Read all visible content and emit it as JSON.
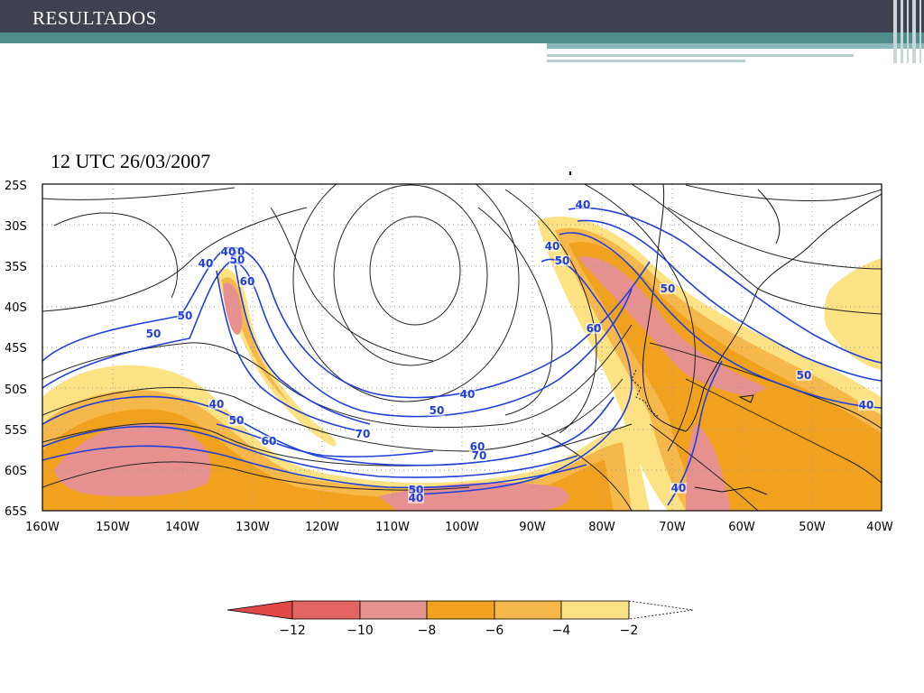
{
  "header": {
    "title": "RESULTADOS"
  },
  "map": {
    "timestamp": "12 UTC 26/03/2007",
    "lat_labels": [
      "25S",
      "30S",
      "35S",
      "40S",
      "45S",
      "50S",
      "55S",
      "60S",
      "65S"
    ],
    "lon_labels": [
      "160W",
      "150W",
      "140W",
      "130W",
      "120W",
      "110W",
      "100W",
      "90W",
      "80W",
      "70W",
      "60W",
      "50W",
      "40W"
    ],
    "contour_labels": [
      "40",
      "50",
      "50",
      "40",
      "60",
      "50",
      "50",
      "40",
      "50",
      "60",
      "70",
      "40",
      "50",
      "60",
      "70",
      "50",
      "40",
      "40",
      "50",
      "60",
      "50",
      "40"
    ]
  },
  "legend": {
    "ticks": [
      "−12",
      "−10",
      "−8",
      "−6",
      "−4",
      "−2"
    ],
    "colors": [
      "#e46464",
      "#e69090",
      "#f0a21e",
      "#f7b84b",
      "#fde283"
    ]
  },
  "colors": {
    "header": "#3f4150",
    "teal": "#4e8d8b",
    "contour_blue": "#1f3fd8",
    "streamline": "#222222"
  }
}
